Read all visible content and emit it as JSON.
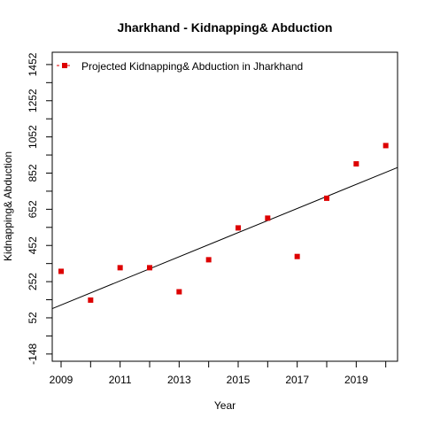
{
  "chart_data": {
    "type": "scatter",
    "title": "Jharkhand  -  Kidnapping& Abduction",
    "xlabel": "Year",
    "ylabel": "Kidnapping& Abduction",
    "xlim": [
      2008.7,
      2020.4
    ],
    "ylim": [
      -188,
      1520
    ],
    "xticks": [
      2009,
      2010,
      2011,
      2012,
      2013,
      2014,
      2015,
      2016,
      2017,
      2018,
      2019,
      2020
    ],
    "xtick_labels": [
      "2009",
      "",
      "2011",
      "",
      "2013",
      "",
      "2015",
      "",
      "2017",
      "",
      "2019",
      ""
    ],
    "yticks": [
      -148,
      -48,
      52,
      152,
      252,
      352,
      452,
      552,
      652,
      752,
      852,
      952,
      1052,
      1152,
      1252,
      1352,
      1452
    ],
    "ytick_labels": [
      "-148",
      "",
      "52",
      "",
      "252",
      "",
      "452",
      "",
      "652",
      "",
      "852",
      "",
      "1052",
      "",
      "1252",
      "",
      "1452"
    ],
    "series": [
      {
        "name": "Projected  Kidnapping& Abduction  in  Jharkhand",
        "color": "#dd0000",
        "marker": "square",
        "x": [
          2009,
          2010,
          2011,
          2012,
          2013,
          2014,
          2015,
          2016,
          2017,
          2018,
          2019,
          2020
        ],
        "y": [
          309,
          150,
          329,
          329,
          196,
          373,
          549,
          603,
          391,
          713,
          903,
          1004
        ]
      }
    ],
    "trendline": {
      "color": "#000000",
      "x": [
        2008.7,
        2020.4
      ],
      "y": [
        103,
        883
      ]
    },
    "legend_position": "top-left",
    "grid": false
  }
}
